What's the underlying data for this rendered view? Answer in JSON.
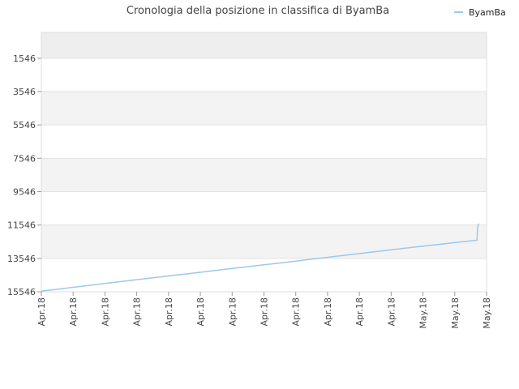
{
  "chart_data": {
    "type": "line",
    "title": "Cronologia della posizione in classifica di ByamBa",
    "xlabel": "",
    "ylabel": "",
    "y_inverted": true,
    "ylim": [
      15546,
      0
    ],
    "y_ticks": [
      "1546",
      "3546",
      "5546",
      "7546",
      "9546",
      "11546",
      "13546",
      "15546"
    ],
    "x_ticks": [
      "Apr.18",
      "Apr.18",
      "Apr.18",
      "Apr.18",
      "Apr.18",
      "Apr.18",
      "Apr.18",
      "Apr.18",
      "Apr.18",
      "Apr.18",
      "Apr.18",
      "Apr.18",
      "May.18",
      "May.18",
      "May.18"
    ],
    "grid": true,
    "legend_position": "top-right",
    "series": [
      {
        "name": "ByamBa",
        "color": "#9dc8ea",
        "x": [
          0.0,
          0.5,
          1,
          2,
          3,
          4,
          5,
          6,
          7,
          8,
          9,
          10,
          11,
          12,
          13,
          13.6,
          13.7,
          13.72,
          13.75
        ],
        "values": [
          15500,
          15400,
          15280,
          15050,
          14820,
          14600,
          14380,
          14150,
          13930,
          13710,
          13480,
          13260,
          13030,
          12810,
          12600,
          12470,
          12460,
          11700,
          11450
        ]
      }
    ]
  }
}
